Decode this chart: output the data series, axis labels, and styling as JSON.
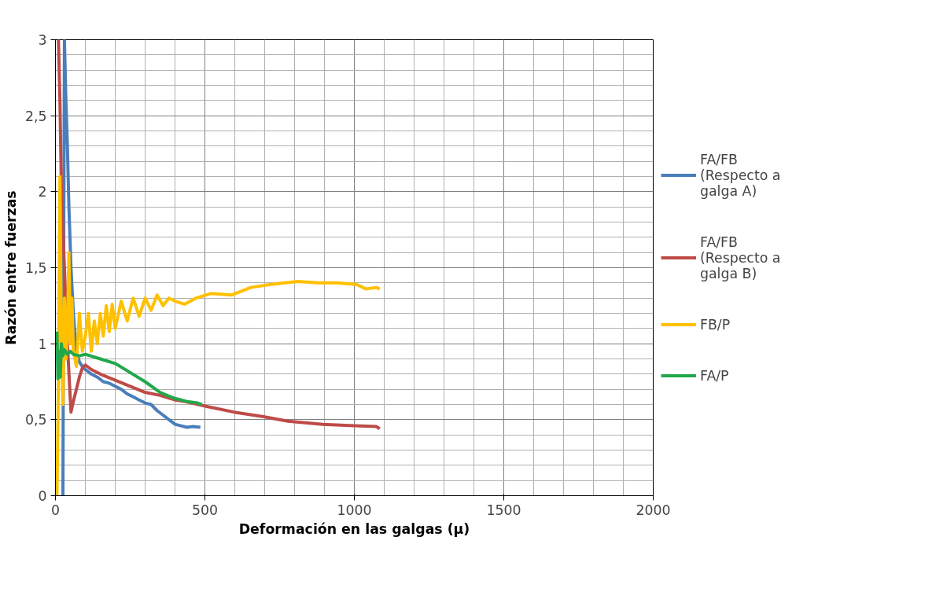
{
  "chart_data": {
    "type": "line",
    "xlabel": "Deformación en las galgas (μ)",
    "ylabel": "Razón entre fuerzas",
    "xlim": [
      0,
      2000
    ],
    "xticks": [
      0,
      500,
      1000,
      1500,
      2000
    ],
    "ylim": [
      0,
      3
    ],
    "yticks": [
      0,
      {
        "value": 0.5,
        "label": "0,5"
      },
      1,
      {
        "value": 1.5,
        "label": "1,5"
      },
      2,
      {
        "value": 2.5,
        "label": "2,5"
      },
      3
    ],
    "grid": true,
    "legend": "right",
    "line_style": "solid",
    "marker": "none",
    "series": [
      {
        "name": "FA/FB (Respecto a galga A)",
        "color": "#4a7ebb",
        "x": [
          25,
          30,
          35,
          40,
          45,
          52,
          60,
          70,
          80,
          90,
          100,
          120,
          140,
          160,
          180,
          200,
          220,
          240,
          260,
          280,
          300,
          320,
          340,
          360,
          380,
          400,
          420,
          440,
          460,
          485
        ],
        "values": [
          0,
          3,
          2.6,
          2.3,
          1.9,
          1.5,
          1.2,
          0.95,
          0.88,
          0.85,
          0.83,
          0.8,
          0.78,
          0.75,
          0.74,
          0.72,
          0.7,
          0.67,
          0.65,
          0.63,
          0.61,
          0.6,
          0.56,
          0.53,
          0.5,
          0.47,
          0.46,
          0.45,
          0.455,
          0.45
        ]
      },
      {
        "name": "FA/FB (Respecto a galga B)",
        "color": "#be4b48",
        "x": [
          5,
          10,
          15,
          20,
          30,
          40,
          52,
          60,
          70,
          80,
          90,
          100,
          120,
          150,
          200,
          250,
          300,
          350,
          400,
          432,
          500,
          597,
          696,
          778,
          894,
          1000,
          1074,
          1085
        ],
        "values": [
          3,
          3,
          2.6,
          2.0,
          1.5,
          1.0,
          0.55,
          0.62,
          0.7,
          0.78,
          0.84,
          0.86,
          0.83,
          0.8,
          0.76,
          0.72,
          0.68,
          0.66,
          0.63,
          0.62,
          0.59,
          0.55,
          0.52,
          0.49,
          0.47,
          0.46,
          0.455,
          0.44
        ]
      },
      {
        "name": "FB/P",
        "color": "#ffc000",
        "x": [
          5,
          10,
          15,
          20,
          25,
          30,
          35,
          40,
          45,
          50,
          55,
          60,
          70,
          80,
          90,
          100,
          110,
          120,
          130,
          140,
          150,
          160,
          170,
          180,
          190,
          200,
          220,
          240,
          260,
          280,
          300,
          320,
          340,
          360,
          380,
          400,
          432,
          470,
          520,
          588,
          654,
          720,
          810,
          880,
          940,
          1007,
          1040,
          1074,
          1085
        ],
        "values": [
          0,
          0.8,
          2.1,
          1.0,
          0.6,
          1.3,
          0.9,
          1.1,
          1.6,
          1.0,
          1.3,
          0.95,
          0.85,
          1.2,
          0.95,
          1.05,
          1.2,
          0.95,
          1.15,
          1.0,
          1.2,
          1.05,
          1.25,
          1.08,
          1.26,
          1.1,
          1.28,
          1.15,
          1.3,
          1.18,
          1.3,
          1.22,
          1.32,
          1.25,
          1.3,
          1.28,
          1.26,
          1.3,
          1.33,
          1.32,
          1.37,
          1.39,
          1.41,
          1.4,
          1.4,
          1.39,
          1.36,
          1.37,
          1.36
        ]
      },
      {
        "name": "FA/P",
        "color": "#22a84b",
        "x": [
          5,
          8,
          12,
          16,
          20,
          25,
          30,
          40,
          50,
          60,
          80,
          100,
          150,
          200,
          250,
          300,
          350,
          373,
          400,
          440,
          475,
          490
        ],
        "values": [
          1.08,
          0.77,
          0.95,
          0.78,
          1.0,
          0.92,
          0.96,
          0.93,
          0.95,
          0.93,
          0.92,
          0.93,
          0.9,
          0.87,
          0.81,
          0.75,
          0.68,
          0.66,
          0.64,
          0.62,
          0.61,
          0.6
        ]
      }
    ]
  }
}
